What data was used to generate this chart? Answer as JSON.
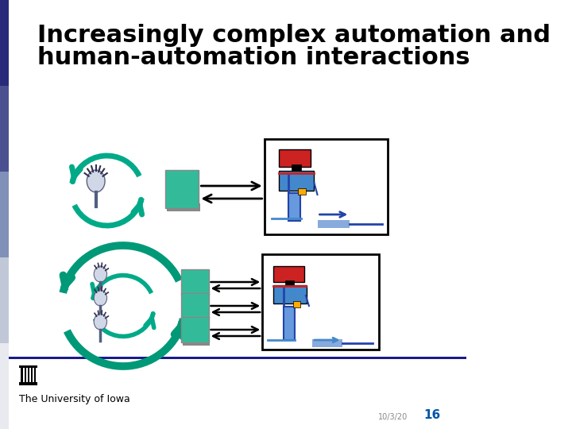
{
  "title_line1": "Increasingly complex automation and",
  "title_line2": "human-automation interactions",
  "title_fontsize": 22,
  "title_color": "#000000",
  "title_bold": true,
  "bg_color": "#ffffff",
  "left_bar_color": "#3a3a8c",
  "left_bar_width": 14,
  "header_bar_color": "#1a1a6e",
  "footer_text": "The University of Iowa",
  "footer_fontsize": 9,
  "slide_number": "16",
  "date_text": "10/3/20",
  "teal_color": "#00aa88",
  "box_color": "#33bb99"
}
